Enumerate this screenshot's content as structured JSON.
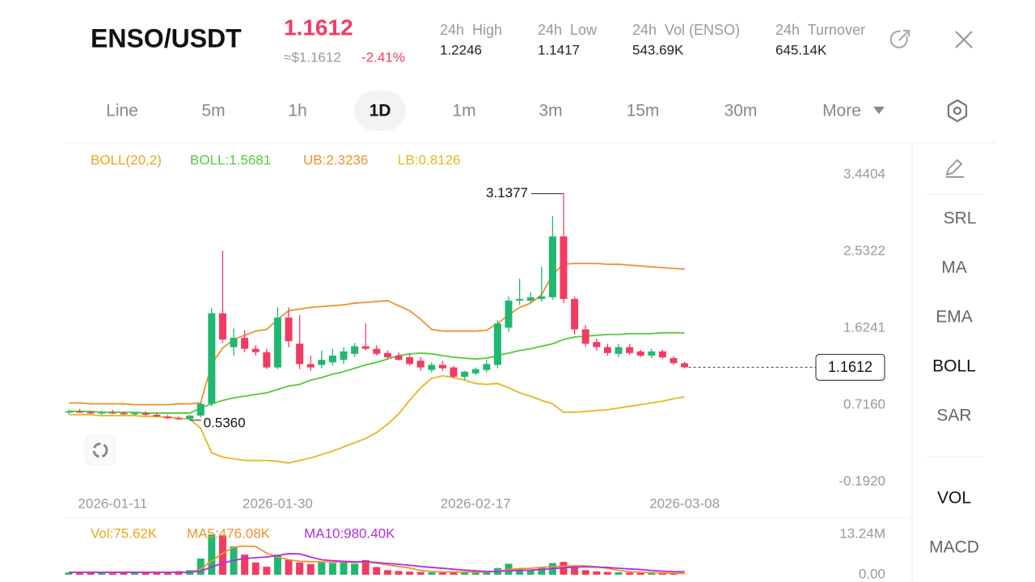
{
  "header": {
    "pair": "ENSO/USDT",
    "price": "1.1612",
    "approx": "≈$1.1612",
    "change": "-2.41%",
    "stats": [
      {
        "label": "24h  High",
        "value": "1.2246"
      },
      {
        "label": "24h  Low",
        "value": "1.1417"
      },
      {
        "label": "24h  Vol (ENSO)",
        "value": "543.69K"
      },
      {
        "label": "24h  Turnover",
        "value": "645.14K"
      }
    ]
  },
  "tabs": [
    "Line",
    "5m",
    "1h",
    "1D",
    "1m",
    "3m",
    "15m",
    "30m",
    "More"
  ],
  "active_tab": 3,
  "sidebar": [
    "SRL",
    "MA",
    "EMA",
    "BOLL",
    "SAR",
    "VOL",
    "MACD"
  ],
  "sidebar_active": [
    3,
    5
  ],
  "chart_data": [
    {
      "type": "candlestick",
      "legend_title": "BOLL(20,2)",
      "legend_title_color": "#e6a817",
      "up_color": "#1fb871",
      "down_color": "#f23b62",
      "max_label": "3.1377",
      "min_label": "0.5360",
      "last_label": "1.1612",
      "ylim": [
        -0.192,
        3.4404
      ],
      "yticks": [
        3.4404,
        2.5322,
        1.6241,
        {
          "value": 0.716,
          "label": "0.7160"
        },
        {
          "value": -0.192,
          "label": "-0.1920"
        }
      ],
      "categories": [
        null,
        null,
        null,
        null,
        "2026-01-11",
        null,
        null,
        null,
        null,
        null,
        null,
        null,
        null,
        null,
        null,
        null,
        null,
        null,
        null,
        "2026-01-30",
        null,
        null,
        null,
        null,
        null,
        null,
        null,
        null,
        null,
        null,
        null,
        null,
        null,
        null,
        null,
        null,
        null,
        "2026-02-17",
        null,
        null,
        null,
        null,
        null,
        null,
        null,
        null,
        null,
        null,
        null,
        null,
        null,
        null,
        null,
        null,
        null,
        null,
        "2026-03-08"
      ],
      "open": [
        0.63,
        0.64,
        0.63,
        0.62,
        0.63,
        0.62,
        0.61,
        0.62,
        0.6,
        0.58,
        0.56,
        0.55,
        0.59,
        0.73,
        1.8,
        1.4,
        1.51,
        1.38,
        1.34,
        1.16,
        1.75,
        1.44,
        1.2,
        1.19,
        1.22,
        1.25,
        1.32,
        1.41,
        1.38,
        1.33,
        1.3,
        1.28,
        1.24,
        1.13,
        1.19,
        1.16,
        1.05,
        1.09,
        1.13,
        1.19,
        1.63,
        1.95,
        1.95,
        1.97,
        1.99,
        2.71,
        1.97,
        1.61,
        1.46,
        1.4,
        1.32,
        1.4,
        1.35,
        1.3,
        1.35,
        1.27,
        1.21
      ],
      "high": [
        0.66,
        0.67,
        0.65,
        0.65,
        0.66,
        0.64,
        0.63,
        0.64,
        0.62,
        0.6,
        0.58,
        0.6,
        0.75,
        1.86,
        2.54,
        1.62,
        1.6,
        1.42,
        1.38,
        1.87,
        1.87,
        1.78,
        1.3,
        1.36,
        1.38,
        1.4,
        1.45,
        1.68,
        1.42,
        1.36,
        1.34,
        1.32,
        1.28,
        1.22,
        1.24,
        1.18,
        1.12,
        1.16,
        1.25,
        1.72,
        2.0,
        2.21,
        2.05,
        2.35,
        2.95,
        3.1377,
        2.0,
        1.66,
        1.5,
        1.44,
        1.44,
        1.44,
        1.37,
        1.38,
        1.37,
        1.29,
        1.23
      ],
      "low": [
        0.61,
        0.62,
        0.61,
        0.6,
        0.61,
        0.6,
        0.59,
        0.59,
        0.57,
        0.55,
        0.54,
        0.536,
        0.57,
        0.7,
        1.45,
        1.3,
        1.34,
        1.3,
        1.14,
        1.14,
        1.4,
        1.14,
        1.12,
        1.15,
        1.18,
        1.2,
        1.28,
        1.36,
        1.3,
        1.26,
        1.24,
        1.18,
        1.12,
        1.1,
        1.12,
        1.03,
        1.01,
        1.07,
        1.1,
        1.15,
        1.58,
        1.9,
        1.92,
        1.94,
        1.96,
        1.92,
        1.55,
        1.4,
        1.36,
        1.3,
        1.28,
        1.31,
        1.28,
        1.27,
        1.26,
        1.19,
        1.15
      ],
      "close": [
        0.64,
        0.63,
        0.62,
        0.63,
        0.62,
        0.61,
        0.62,
        0.6,
        0.58,
        0.56,
        0.55,
        0.59,
        0.73,
        1.8,
        1.49,
        1.51,
        1.38,
        1.34,
        1.16,
        1.75,
        1.47,
        1.2,
        1.16,
        1.25,
        1.3,
        1.35,
        1.41,
        1.38,
        1.32,
        1.28,
        1.25,
        1.2,
        1.16,
        1.19,
        1.15,
        1.05,
        1.11,
        1.14,
        1.2,
        1.68,
        1.95,
        1.97,
        1.99,
        2.0,
        2.71,
        1.97,
        1.61,
        1.44,
        1.4,
        1.33,
        1.4,
        1.33,
        1.3,
        1.35,
        1.28,
        1.21,
        1.1612
      ],
      "series": [
        {
          "name": "BOLL:1.5681",
          "color": "#55c93a",
          "values": [
            0.64,
            0.64,
            0.64,
            0.63,
            0.63,
            0.63,
            0.63,
            0.62,
            0.62,
            0.62,
            0.62,
            0.62,
            0.68,
            0.73,
            0.77,
            0.8,
            0.82,
            0.84,
            0.86,
            0.9,
            0.94,
            0.96,
            1.01,
            1.04,
            1.08,
            1.11,
            1.15,
            1.19,
            1.22,
            1.26,
            1.3,
            1.32,
            1.33,
            1.32,
            1.3,
            1.28,
            1.27,
            1.26,
            1.27,
            1.3,
            1.33,
            1.36,
            1.38,
            1.41,
            1.44,
            1.49,
            1.52,
            1.53,
            1.54,
            1.55,
            1.55,
            1.56,
            1.56,
            1.56,
            1.57,
            1.57,
            1.5681
          ]
        },
        {
          "name": "UB:2.3236",
          "color": "#f0912a",
          "values": [
            0.74,
            0.74,
            0.73,
            0.73,
            0.73,
            0.73,
            0.72,
            0.72,
            0.72,
            0.72,
            0.73,
            0.73,
            0.74,
            1.2,
            1.39,
            1.49,
            1.54,
            1.59,
            1.61,
            1.73,
            1.83,
            1.85,
            1.87,
            1.88,
            1.89,
            1.9,
            1.92,
            1.93,
            1.94,
            1.95,
            1.89,
            1.83,
            1.73,
            1.61,
            1.59,
            1.59,
            1.59,
            1.59,
            1.6,
            1.68,
            1.78,
            1.87,
            1.92,
            2.02,
            2.26,
            2.38,
            2.39,
            2.39,
            2.39,
            2.38,
            2.38,
            2.37,
            2.36,
            2.35,
            2.34,
            2.33,
            2.3236
          ]
        },
        {
          "name": "LB:0.8126",
          "color": "#e8b51a",
          "values": [
            0.6,
            0.6,
            0.6,
            0.59,
            0.59,
            0.59,
            0.59,
            0.58,
            0.58,
            0.57,
            0.56,
            0.55,
            0.44,
            0.15,
            0.1,
            0.08,
            0.06,
            0.06,
            0.06,
            0.05,
            0.03,
            0.06,
            0.09,
            0.13,
            0.17,
            0.22,
            0.27,
            0.32,
            0.39,
            0.49,
            0.61,
            0.77,
            0.92,
            1.03,
            1.06,
            1.04,
            1.01,
            0.97,
            0.96,
            0.97,
            0.92,
            0.86,
            0.82,
            0.77,
            0.73,
            0.63,
            0.63,
            0.64,
            0.65,
            0.66,
            0.68,
            0.7,
            0.72,
            0.74,
            0.76,
            0.79,
            0.8126
          ]
        }
      ]
    },
    {
      "type": "bar",
      "name": "Vol:75.62K",
      "color": "#e6a817",
      "ylim": [
        0,
        13240000
      ],
      "yticks": [
        {
          "value": 13240000,
          "label": "13.24M"
        },
        {
          "value": 0,
          "label": "0.00"
        }
      ],
      "values": [
        700000,
        900000,
        600000,
        800000,
        500000,
        700000,
        900000,
        600000,
        800000,
        1000000,
        1200000,
        1500000,
        5300000,
        13200000,
        13000000,
        9300000,
        6600000,
        4000000,
        2600000,
        6600000,
        4800000,
        4000000,
        3500000,
        4200000,
        3800000,
        4500000,
        3600000,
        4800000,
        2500000,
        1500000,
        1200000,
        1000000,
        900000,
        800000,
        700000,
        1100000,
        900000,
        800000,
        1000000,
        2200000,
        3600000,
        2000000,
        1600000,
        2400000,
        3800000,
        4200000,
        2600000,
        1500000,
        1100000,
        900000,
        800000,
        700000,
        600000,
        500000,
        400000,
        300000,
        75620
      ],
      "series": [
        {
          "name": "MA5:476.08K",
          "color": "#f0912a",
          "values": [
            800000,
            800000,
            800000,
            800000,
            800000,
            800000,
            800000,
            800000,
            800000,
            800000,
            800000,
            800000,
            1800000,
            4500000,
            7000000,
            9000000,
            9400000,
            9200000,
            7100000,
            5800000,
            4900000,
            4400000,
            4300000,
            4200000,
            4100000,
            4200000,
            4000000,
            4200000,
            3800000,
            3200000,
            2700000,
            2200000,
            1400000,
            1100000,
            900000,
            900000,
            900000,
            900000,
            900000,
            1200000,
            1700000,
            2000000,
            2100000,
            2400000,
            2700000,
            2800000,
            2900000,
            2900000,
            2600000,
            2100000,
            1400000,
            1000000,
            800000,
            700000,
            600000,
            500000,
            476080
          ]
        },
        {
          "name": "MA10:980.40K",
          "color": "#b12ee0",
          "values": [
            800000,
            800000,
            800000,
            800000,
            800000,
            800000,
            800000,
            800000,
            800000,
            800000,
            800000,
            800000,
            1200000,
            2500000,
            3800000,
            4700000,
            5300000,
            5600000,
            5800000,
            6300000,
            6900000,
            6800000,
            5800000,
            4900000,
            4600000,
            4400000,
            4200000,
            4300000,
            4000000,
            3700000,
            3400000,
            3100000,
            2700000,
            2400000,
            2100000,
            1800000,
            1500000,
            1300000,
            1100000,
            1100000,
            1300000,
            1400000,
            1500000,
            1700000,
            2000000,
            2300000,
            2500000,
            2600000,
            2500000,
            2400000,
            2100000,
            1900000,
            1700000,
            1400000,
            1200000,
            1000000,
            980400
          ]
        }
      ]
    }
  ]
}
